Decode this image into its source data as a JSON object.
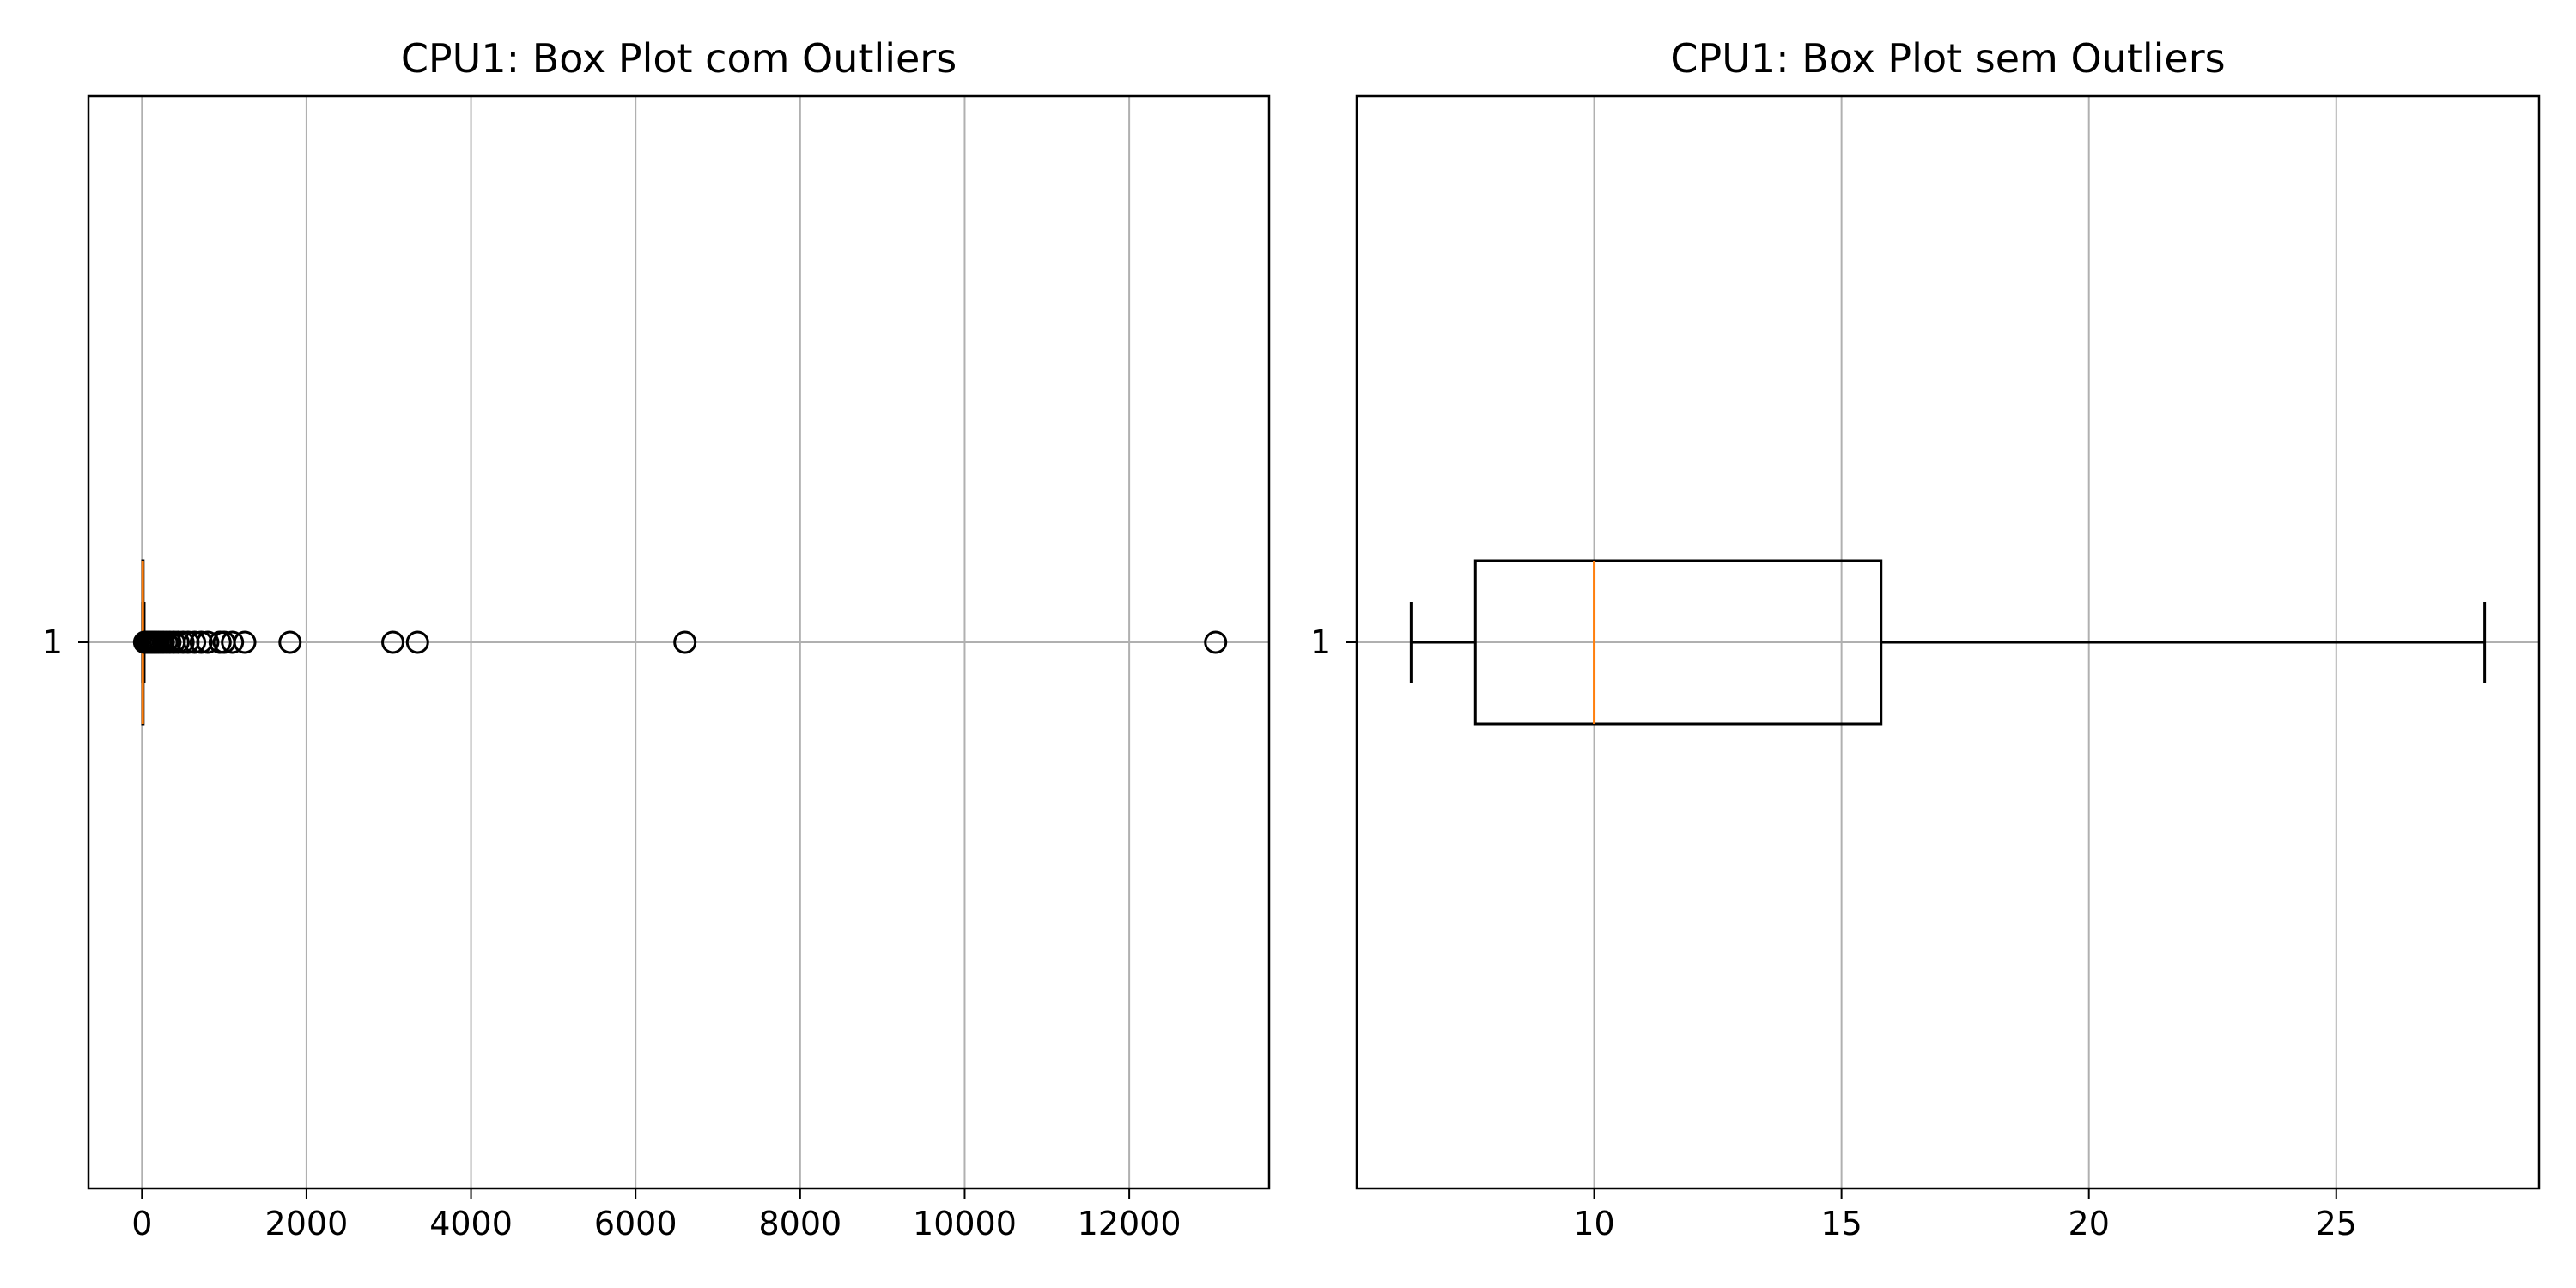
{
  "chart_data": [
    {
      "type": "boxplot",
      "title": "CPU1: Box Plot com Outliers",
      "orientation": "horizontal",
      "categories": [
        "1"
      ],
      "xlim": [
        -650,
        13700
      ],
      "xticks": [
        0,
        2000,
        4000,
        6000,
        8000,
        10000,
        12000
      ],
      "xtick_labels": [
        "0",
        "2000",
        "4000",
        "6000",
        "8000",
        "10000",
        "12000"
      ],
      "grid": true,
      "box": {
        "whisker_low": 6.3,
        "q1": 7.6,
        "median": 10.0,
        "q3": 15.8,
        "whisker_high": 28.0
      },
      "outliers": [
        32,
        45,
        60,
        75,
        90,
        110,
        130,
        150,
        175,
        200,
        230,
        260,
        300,
        340,
        390,
        440,
        500,
        560,
        640,
        720,
        800,
        950,
        1000,
        1100,
        1250,
        1800,
        3050,
        3350,
        6600,
        13050
      ],
      "colors": {
        "box": "#000000",
        "median": "#ff7f0e",
        "grid": "#b0b0b0",
        "outlier_edge": "#000000"
      }
    },
    {
      "type": "boxplot",
      "title": "CPU1: Box Plot sem Outliers",
      "orientation": "horizontal",
      "categories": [
        "1"
      ],
      "xlim": [
        5.2,
        29.1
      ],
      "xticks": [
        10,
        15,
        20,
        25
      ],
      "xtick_labels": [
        "10",
        "15",
        "20",
        "25"
      ],
      "grid": true,
      "box": {
        "whisker_low": 6.3,
        "q1": 7.6,
        "median": 10.0,
        "q3": 15.8,
        "whisker_high": 28.0
      },
      "outliers": [],
      "colors": {
        "box": "#000000",
        "median": "#ff7f0e",
        "grid": "#b0b0b0",
        "outlier_edge": "#000000"
      }
    }
  ]
}
